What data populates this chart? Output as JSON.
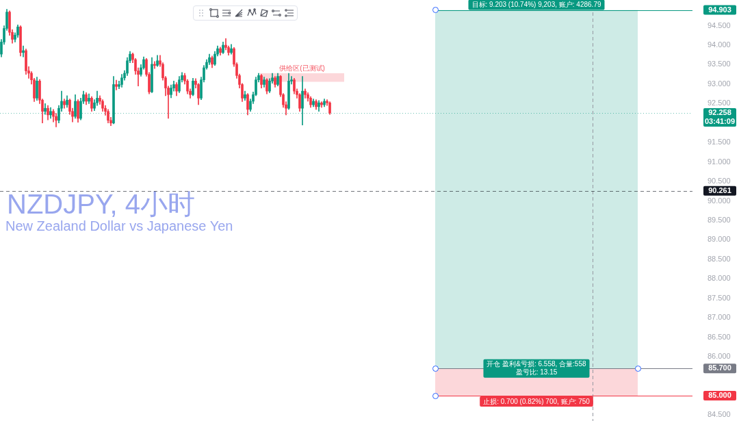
{
  "chart_data": {
    "type": "candlestick",
    "title": "NZDJPY, 4小时",
    "subtitle": "New Zealand Dollar vs Japanese Yen",
    "categories": [
      null,
      null,
      null,
      null,
      null,
      null,
      null,
      null,
      null,
      null,
      null,
      null,
      null,
      null,
      null,
      null,
      null,
      null,
      null,
      null,
      null,
      null,
      null,
      null,
      null,
      null,
      null,
      null,
      null,
      null,
      null,
      null,
      null,
      null,
      null,
      null,
      null,
      null,
      null,
      null,
      null,
      null,
      null,
      null,
      null,
      null,
      null,
      null,
      null,
      null,
      null,
      null,
      null,
      null,
      null,
      null,
      null,
      null,
      null,
      null,
      null,
      null,
      null,
      null,
      null,
      null,
      null,
      null,
      null,
      null,
      null,
      null,
      null,
      null,
      null,
      null,
      null,
      null,
      null,
      null,
      null,
      null,
      null,
      null,
      null,
      null,
      null,
      null,
      null,
      null,
      null,
      null,
      null,
      null,
      null,
      null,
      null,
      null,
      null,
      null,
      null,
      null,
      null,
      null,
      null,
      null,
      null,
      null,
      null,
      null,
      null,
      null,
      null,
      null,
      null,
      null,
      null,
      null,
      null,
      null,
      null,
      null,
      null,
      null,
      null,
      null,
      null,
      null,
      null,
      null,
      null,
      null,
      null,
      null,
      null,
      null,
      null,
      null,
      null,
      null,
      null,
      null,
      null,
      null,
      null,
      null,
      null,
      null,
      null,
      null,
      null,
      null,
      null,
      null,
      null,
      null,
      null,
      null,
      null,
      null,
      null,
      null,
      null,
      null,
      null,
      null,
      null,
      null,
      null,
      null,
      null,
      null,
      null,
      null,
      null,
      null,
      null,
      null,
      null,
      null,
      null,
      null,
      null,
      null,
      null,
      null,
      null,
      null,
      null,
      null,
      null,
      null,
      null,
      null,
      null,
      null,
      null,
      null,
      null,
      null,
      null,
      null,
      null,
      null,
      null,
      null,
      null,
      null,
      null,
      null,
      null,
      null,
      null,
      null,
      null,
      null,
      null,
      null,
      null,
      null,
      null,
      null,
      null,
      null,
      null,
      null,
      null,
      null,
      null,
      null,
      null,
      null,
      null,
      null,
      null,
      null,
      null,
      null,
      null,
      null,
      null,
      null,
      null,
      null,
      null,
      null,
      null,
      null,
      null,
      null,
      null,
      null,
      null
    ],
    "ohlc": [
      [
        93.77,
        94.15,
        93.7,
        94.08
      ],
      [
        94.08,
        94.5,
        94.02,
        94.43
      ],
      [
        94.43,
        94.92,
        94.38,
        94.85
      ],
      [
        94.85,
        94.88,
        94.25,
        94.33
      ],
      [
        94.33,
        94.4,
        94.05,
        94.15
      ],
      [
        94.15,
        94.32,
        94.08,
        94.26
      ],
      [
        94.26,
        94.52,
        94.2,
        94.47
      ],
      [
        94.47,
        94.5,
        93.72,
        93.81
      ],
      [
        93.81,
        93.98,
        93.7,
        93.86
      ],
      [
        93.86,
        93.9,
        93.25,
        93.34
      ],
      [
        93.34,
        93.45,
        93.15,
        93.28
      ],
      [
        93.28,
        93.32,
        93.0,
        93.11
      ],
      [
        93.11,
        93.15,
        92.55,
        92.64
      ],
      [
        92.64,
        93.18,
        92.58,
        93.08
      ],
      [
        93.08,
        93.12,
        92.5,
        92.59
      ],
      [
        92.59,
        92.62,
        92.0,
        92.3
      ],
      [
        92.3,
        92.5,
        92.22,
        92.38
      ],
      [
        92.38,
        92.45,
        92.08,
        92.21
      ],
      [
        92.21,
        92.4,
        92.12,
        92.3
      ],
      [
        92.3,
        92.35,
        92.03,
        92.17
      ],
      [
        92.17,
        92.25,
        91.9,
        92.07
      ],
      [
        92.07,
        92.45,
        92.0,
        92.38
      ],
      [
        92.38,
        92.82,
        92.3,
        92.56
      ],
      [
        92.56,
        92.62,
        92.38,
        92.47
      ],
      [
        92.47,
        92.7,
        92.4,
        92.59
      ],
      [
        92.59,
        92.62,
        92.22,
        92.3
      ],
      [
        92.3,
        92.38,
        92.03,
        92.17
      ],
      [
        92.17,
        92.73,
        92.12,
        92.56
      ],
      [
        92.56,
        92.6,
        92.02,
        92.12
      ],
      [
        92.12,
        92.64,
        92.08,
        92.56
      ],
      [
        92.56,
        92.82,
        92.5,
        92.73
      ],
      [
        92.73,
        92.78,
        92.47,
        92.56
      ],
      [
        92.56,
        92.75,
        92.5,
        92.64
      ],
      [
        92.64,
        92.68,
        92.3,
        92.38
      ],
      [
        92.38,
        92.6,
        92.32,
        92.52
      ],
      [
        92.52,
        92.82,
        92.45,
        92.64
      ],
      [
        92.64,
        92.7,
        92.48,
        92.56
      ],
      [
        92.56,
        92.6,
        92.3,
        92.38
      ],
      [
        92.38,
        92.45,
        92.2,
        92.3
      ],
      [
        92.3,
        92.35,
        92.0,
        92.07
      ],
      [
        92.07,
        92.15,
        91.93,
        92.0
      ],
      [
        92.0,
        93.2,
        91.98,
        92.99
      ],
      [
        92.99,
        93.1,
        92.85,
        92.94
      ],
      [
        92.94,
        93.08,
        92.88,
        92.99
      ],
      [
        92.99,
        93.25,
        92.92,
        93.16
      ],
      [
        93.16,
        93.35,
        93.1,
        93.28
      ],
      [
        93.28,
        93.68,
        93.22,
        93.6
      ],
      [
        93.6,
        93.84,
        93.55,
        93.77
      ],
      [
        93.77,
        93.8,
        93.55,
        93.63
      ],
      [
        93.63,
        93.66,
        93.25,
        93.34
      ],
      [
        93.34,
        93.42,
        92.95,
        93.25
      ],
      [
        93.25,
        93.5,
        93.2,
        93.42
      ],
      [
        93.42,
        93.7,
        93.38,
        93.63
      ],
      [
        93.63,
        93.66,
        93.2,
        93.25
      ],
      [
        93.25,
        93.3,
        92.75,
        92.8
      ],
      [
        92.8,
        93.68,
        92.78,
        93.51
      ],
      [
        93.51,
        93.58,
        93.4,
        93.48
      ],
      [
        93.48,
        93.74,
        93.45,
        93.6
      ],
      [
        93.6,
        93.74,
        93.45,
        93.51
      ],
      [
        93.51,
        93.55,
        93.1,
        93.16
      ],
      [
        93.16,
        93.2,
        92.7,
        92.9
      ],
      [
        92.9,
        92.95,
        92.12,
        92.73
      ],
      [
        92.73,
        92.98,
        92.65,
        92.9
      ],
      [
        92.9,
        93.08,
        92.82,
        92.99
      ],
      [
        92.99,
        93.04,
        92.7,
        92.82
      ],
      [
        92.82,
        93.2,
        92.78,
        93.11
      ],
      [
        93.11,
        93.3,
        93.05,
        93.22
      ],
      [
        93.22,
        93.28,
        93.0,
        93.08
      ],
      [
        93.08,
        93.12,
        92.75,
        92.82
      ],
      [
        92.82,
        92.88,
        92.64,
        92.73
      ],
      [
        92.73,
        93.15,
        92.7,
        93.08
      ],
      [
        93.08,
        93.14,
        92.9,
        92.99
      ],
      [
        92.99,
        93.02,
        92.47,
        92.64
      ],
      [
        92.64,
        93.18,
        92.6,
        93.11
      ],
      [
        93.11,
        93.48,
        93.05,
        93.42
      ],
      [
        93.42,
        93.63,
        93.38,
        93.56
      ],
      [
        93.56,
        93.77,
        93.5,
        93.68
      ],
      [
        93.68,
        93.72,
        93.42,
        93.51
      ],
      [
        93.51,
        93.84,
        93.48,
        93.77
      ],
      [
        93.77,
        93.98,
        93.72,
        93.91
      ],
      [
        93.91,
        93.95,
        93.74,
        93.81
      ],
      [
        93.81,
        94.08,
        93.78,
        94.0
      ],
      [
        94.0,
        94.17,
        93.88,
        93.94
      ],
      [
        93.94,
        93.98,
        93.74,
        93.81
      ],
      [
        93.81,
        94.02,
        93.77,
        93.91
      ],
      [
        93.91,
        93.94,
        93.45,
        93.51
      ],
      [
        93.51,
        93.55,
        93.15,
        93.22
      ],
      [
        93.22,
        93.26,
        92.9,
        92.99
      ],
      [
        92.99,
        93.02,
        92.55,
        92.64
      ],
      [
        92.64,
        92.82,
        92.58,
        92.73
      ],
      [
        92.73,
        92.76,
        92.21,
        92.35
      ],
      [
        92.35,
        92.62,
        92.3,
        92.56
      ],
      [
        92.56,
        92.8,
        92.5,
        92.73
      ],
      [
        92.73,
        93.18,
        92.7,
        93.11
      ],
      [
        93.11,
        93.28,
        93.05,
        93.22
      ],
      [
        93.22,
        93.25,
        92.9,
        92.99
      ],
      [
        92.99,
        93.18,
        92.92,
        93.11
      ],
      [
        93.11,
        93.14,
        92.75,
        92.82
      ],
      [
        92.82,
        93.14,
        92.78,
        93.08
      ],
      [
        93.08,
        93.28,
        93.02,
        93.16
      ],
      [
        93.16,
        93.2,
        92.92,
        92.99
      ],
      [
        92.99,
        93.28,
        92.95,
        93.2
      ],
      [
        93.2,
        93.22,
        92.68,
        92.73
      ],
      [
        92.73,
        92.76,
        92.4,
        92.47
      ],
      [
        92.47,
        92.55,
        92.21,
        92.38
      ],
      [
        92.38,
        93.28,
        92.35,
        93.08
      ],
      [
        93.08,
        93.2,
        93.0,
        93.11
      ],
      [
        93.11,
        93.15,
        92.75,
        92.82
      ],
      [
        92.82,
        92.88,
        92.64,
        92.73
      ],
      [
        92.73,
        92.76,
        92.3,
        92.38
      ],
      [
        92.38,
        93.2,
        91.95,
        92.82
      ],
      [
        92.82,
        92.88,
        92.64,
        92.73
      ],
      [
        92.73,
        92.78,
        92.56,
        92.64
      ],
      [
        92.64,
        92.68,
        92.4,
        92.47
      ],
      [
        92.47,
        92.62,
        92.42,
        92.56
      ],
      [
        92.56,
        92.6,
        92.35,
        92.42
      ],
      [
        92.42,
        92.58,
        92.3,
        92.52
      ],
      [
        92.52,
        92.55,
        92.4,
        92.47
      ],
      [
        92.47,
        92.62,
        92.42,
        92.56
      ],
      [
        92.56,
        92.6,
        92.45,
        92.52
      ],
      [
        92.52,
        92.55,
        92.22,
        92.258
      ],
      null,
      null,
      null,
      null,
      null,
      null,
      null,
      null,
      null,
      null,
      null,
      null,
      null,
      null,
      null,
      null,
      null,
      null,
      null,
      null,
      null,
      null,
      null,
      null,
      null,
      null,
      null,
      null,
      null,
      null,
      null,
      null,
      null,
      null,
      null,
      null,
      null,
      null,
      null,
      null,
      null,
      null,
      null,
      null,
      null,
      null,
      null,
      null,
      null,
      null,
      null,
      null,
      null,
      null,
      null,
      null,
      null,
      null,
      null,
      null,
      null,
      null,
      null,
      null,
      null,
      null,
      null,
      null,
      null,
      null,
      null,
      null,
      null,
      null,
      null,
      null,
      null,
      null,
      null,
      null,
      null,
      null,
      null,
      null,
      null,
      null,
      null,
      null,
      null,
      null,
      null,
      null,
      null,
      null,
      null,
      null,
      null,
      null,
      null,
      null,
      null,
      null,
      null,
      null,
      null,
      null,
      null,
      null,
      null,
      null,
      null,
      null,
      null,
      null,
      null,
      null,
      null,
      null,
      null,
      null,
      null,
      null,
      null,
      null,
      null,
      null,
      null,
      null,
      null,
      null,
      null,
      null
    ],
    "colors": [
      "#089981",
      "#089981",
      "#089981",
      "#f23645",
      "#f23645",
      "#089981",
      "#089981",
      "#f23645",
      "#089981",
      "#f23645",
      "#f23645",
      "#f23645",
      "#f23645",
      "#089981",
      "#f23645",
      "#f23645",
      "#089981",
      "#f23645",
      "#089981",
      "#f23645",
      "#f23645",
      "#089981",
      "#089981",
      "#f23645",
      "#089981",
      "#f23645",
      "#f23645",
      "#089981",
      "#f23645",
      "#089981",
      "#089981",
      "#f23645",
      "#089981",
      "#f23645",
      "#089981",
      "#089981",
      "#f23645",
      "#f23645",
      "#f23645",
      "#f23645",
      "#f23645",
      "#089981",
      "#f23645",
      "#089981",
      "#089981",
      "#089981",
      "#089981",
      "#089981",
      "#f23645",
      "#f23645",
      "#f23645",
      "#089981",
      "#089981",
      "#f23645",
      "#f23645",
      "#089981",
      "#f23645",
      "#089981",
      "#f23645",
      "#f23645",
      "#f23645",
      "#f23645",
      "#089981",
      "#089981",
      "#f23645",
      "#089981",
      "#089981",
      "#f23645",
      "#f23645",
      "#f23645",
      "#089981",
      "#f23645",
      "#f23645",
      "#089981",
      "#089981",
      "#089981",
      "#089981",
      "#f23645",
      "#089981",
      "#089981",
      "#f23645",
      "#089981",
      "#f23645",
      "#f23645",
      "#089981",
      "#f23645",
      "#f23645",
      "#f23645",
      "#f23645",
      "#089981",
      "#f23645",
      "#089981",
      "#089981",
      "#089981",
      "#089981",
      "#f23645",
      "#089981",
      "#f23645",
      "#089981",
      "#089981",
      "#f23645",
      "#089981",
      "#f23645",
      "#f23645",
      "#f23645",
      "#089981",
      "#089981",
      "#f23645",
      "#f23645",
      "#f23645",
      "#089981",
      "#f23645",
      "#f23645",
      "#f23645",
      "#089981",
      "#f23645",
      "#089981",
      "#f23645",
      "#089981",
      "#f23645",
      "#f23645",
      null,
      null,
      null,
      null,
      null,
      null,
      null,
      null,
      null,
      null,
      null,
      null,
      null,
      null,
      null,
      null,
      null,
      null,
      null,
      null,
      null,
      null,
      null,
      null,
      null,
      null,
      null,
      null,
      null,
      null,
      null,
      null,
      null,
      null,
      null,
      null,
      null,
      null,
      null,
      null,
      null,
      null,
      null,
      null,
      null,
      null,
      null,
      null,
      null,
      null,
      null,
      null,
      null,
      null,
      null,
      null,
      null,
      null,
      null,
      null,
      null,
      null,
      null,
      null,
      null,
      null,
      null,
      null,
      null,
      null,
      null,
      null,
      null,
      null,
      null,
      null,
      null,
      null,
      null,
      null,
      null,
      null,
      null,
      null,
      null,
      null,
      null,
      null,
      null,
      null,
      null,
      null,
      null,
      null,
      null,
      null,
      null,
      null,
      null,
      null,
      null,
      null,
      null,
      null,
      null,
      null,
      null,
      null,
      null,
      null,
      null,
      null,
      null,
      null,
      null,
      null,
      null,
      null,
      null,
      null,
      null,
      null,
      null,
      null,
      null,
      null,
      null,
      null,
      null,
      null,
      null,
      null
    ],
    "ylim": [
      84.35,
      95.16
    ],
    "yticks": [
      {
        "value": 84.5,
        "label": "84.500"
      },
      {
        "value": 86,
        "label": "86.000"
      },
      {
        "value": 86.5,
        "label": "86.500"
      },
      {
        "value": 87,
        "label": "87.000"
      },
      {
        "value": 87.5,
        "label": "87.500"
      },
      {
        "value": 88,
        "label": "88.000"
      },
      {
        "value": 88.5,
        "label": "88.500"
      },
      {
        "value": 89,
        "label": "89.000"
      },
      {
        "value": 89.5,
        "label": "89.500"
      },
      {
        "value": 90,
        "label": "90.000"
      },
      {
        "value": 90.5,
        "label": "90.500"
      },
      {
        "value": 91,
        "label": "91.000"
      },
      {
        "value": 91.5,
        "label": "91.500"
      },
      {
        "value": 92.5,
        "label": "92.500"
      },
      {
        "value": 93,
        "label": "93.000"
      },
      {
        "value": 93.5,
        "label": "93.500"
      },
      {
        "value": 94,
        "label": "94.000"
      },
      {
        "value": 94.5,
        "label": "94.500"
      }
    ],
    "tick_labels": "y",
    "ref_lines": [
      {
        "axis": "y",
        "value": 94.903,
        "label": "94.903",
        "color": "#089981"
      },
      {
        "axis": "y",
        "value": 92.258,
        "label": "92.258",
        "color": "#089981",
        "line_style": "dotted"
      },
      {
        "axis": "y",
        "value": 90.261,
        "label": "90.261",
        "color": "#131722",
        "line_style": "dashed"
      },
      {
        "axis": "y",
        "value": 85.7,
        "label": "85.700",
        "color": "#787b86"
      },
      {
        "axis": "y",
        "value": 85.0,
        "label": "85.000",
        "color": "#f23645"
      }
    ],
    "bands": [
      {
        "axis": "y",
        "from": 85.7,
        "to": 94.903,
        "label": "目标: 9.203 (10.74%) 9,203, 账户: 4286.79",
        "color": "#089981"
      },
      {
        "axis": "y",
        "from": 85.0,
        "to": 85.7,
        "label": "止损: 0.700 (0.82%) 700, 账户: 750",
        "color": "#f23645"
      },
      {
        "axis": "y",
        "from": 93.06,
        "to": 93.28,
        "label": "供给区(已测试)",
        "color": "#f23645"
      }
    ],
    "annotations": [
      "开仓 盈利&亏损: 6.558, 合量:558",
      "盈亏比: 13.15",
      "03:41:09"
    ]
  }
}
